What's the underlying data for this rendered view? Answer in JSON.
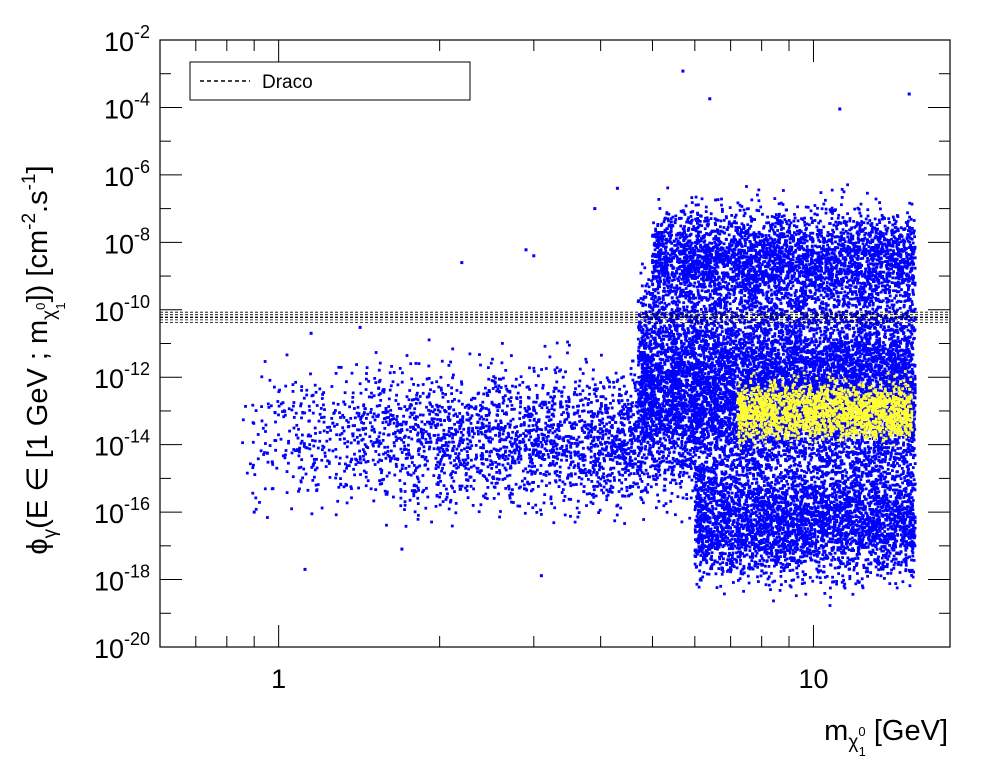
{
  "chart_data": {
    "type": "scatter",
    "title": "",
    "xaxis": {
      "scale": "log",
      "range": [
        0.6,
        18.0
      ],
      "major_ticks": [
        {
          "value": 1,
          "label": "1"
        },
        {
          "value": 10,
          "label": "10"
        }
      ],
      "label": {
        "main": "m",
        "sub": "χ",
        "sub_sup": "0",
        "sub_sub": "1",
        "unit": " [GeV]"
      }
    },
    "yaxis": {
      "scale": "log",
      "range_exp": [
        -20,
        -2
      ],
      "major_ticks": [
        {
          "exp": -2,
          "base": "10",
          "sup": "-2"
        },
        {
          "exp": -4,
          "base": "10",
          "sup": "-4"
        },
        {
          "exp": -6,
          "base": "10",
          "sup": "-6"
        },
        {
          "exp": -8,
          "base": "10",
          "sup": "-8"
        },
        {
          "exp": -10,
          "base": "10",
          "sup": "-10"
        },
        {
          "exp": -12,
          "base": "10",
          "sup": "-12"
        },
        {
          "exp": -14,
          "base": "10",
          "sup": "-14"
        },
        {
          "exp": -16,
          "base": "10",
          "sup": "-16"
        },
        {
          "exp": -18,
          "base": "10",
          "sup": "-18"
        },
        {
          "exp": -20,
          "base": "10",
          "sup": "-20"
        }
      ],
      "label": {
        "phi": "ϕ",
        "gamma": "γ",
        "part1": "(E ∈ [1 GeV ; m",
        "chi": "χ",
        "chi_sup": "0",
        "chi_sub": "1",
        "part2": "]) [cm",
        "cm_sup": "-2",
        "part3": ".s",
        "s_sup": "-1",
        "part4": "]"
      }
    },
    "legend": {
      "position": "top-left",
      "entries": [
        {
          "label": "Draco",
          "style": "dashed",
          "color": "#000000"
        }
      ]
    },
    "limit_lines": [
      {
        "name": "Draco",
        "y": 6e-11,
        "band": [
          4.2e-11,
          8.5e-11
        ],
        "color": "#000000"
      }
    ],
    "series": [
      {
        "color": "#0000ff",
        "note_clusters": [
          {
            "x_range": [
              0.85,
              4.7
            ],
            "y_center_exp": -13.8,
            "y_spread": 1.1,
            "count": 2400
          },
          {
            "x_range": [
              4.7,
              15.5
            ],
            "y_center_exp": -12.3,
            "y_spread": 1.6,
            "count": 9000
          },
          {
            "x_range": [
              5.0,
              15.5
            ],
            "y_center_exp": -8.5,
            "y_spread": 0.8,
            "count": 3500
          },
          {
            "x_range": [
              6.0,
              15.5
            ],
            "y_center_exp": -16.3,
            "y_spread": 0.9,
            "count": 3500
          }
        ],
        "outliers": [
          {
            "x": 5.7,
            "y": 0.0012
          },
          {
            "x": 6.4,
            "y": 0.00018
          },
          {
            "x": 11.2,
            "y": 9e-05
          },
          {
            "x": 15.1,
            "y": 0.00025
          },
          {
            "x": 2.2,
            "y": 2.5e-09
          },
          {
            "x": 2.9,
            "y": 6e-09
          },
          {
            "x": 3.0,
            "y": 4e-09
          },
          {
            "x": 4.3,
            "y": 4e-07
          },
          {
            "x": 3.9,
            "y": 1e-07
          },
          {
            "x": 0.9,
            "y": 1e-16
          },
          {
            "x": 1.12,
            "y": 2e-18
          },
          {
            "x": 1.7,
            "y": 8e-18
          },
          {
            "x": 3.1,
            "y": 1.3e-18
          },
          {
            "x": 1.15,
            "y": 2e-11
          },
          {
            "x": 1.42,
            "y": 3e-11
          }
        ]
      },
      {
        "color": "#ffff33",
        "note_clusters": [
          {
            "x_range": [
              7.2,
              15.3
            ],
            "y_center_exp": -13.0,
            "y_spread": 0.45,
            "count": 1600
          }
        ]
      }
    ]
  }
}
